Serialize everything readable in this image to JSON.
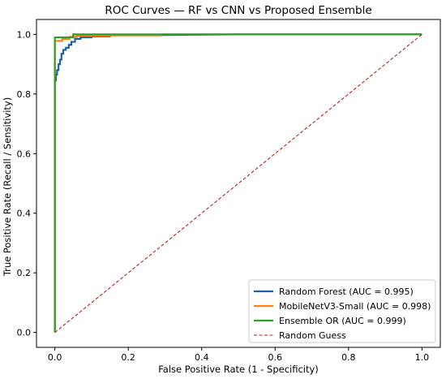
{
  "chart_data": {
    "type": "line",
    "title": "ROC Curves — RF vs CNN vs Proposed Ensemble",
    "xlabel": "False Positive Rate (1 - Specificity)",
    "ylabel": "True Positive Rate (Recall / Sensitivity)",
    "xlim": [
      -0.05,
      1.05
    ],
    "ylim": [
      -0.05,
      1.05
    ],
    "xticks": [
      "0.0",
      "0.2",
      "0.4",
      "0.6",
      "0.8",
      "1.0"
    ],
    "yticks": [
      "0.0",
      "0.2",
      "0.4",
      "0.6",
      "0.8",
      "1.0"
    ],
    "grid": false,
    "legend_position": "bottom-right",
    "series": [
      {
        "name": "Random Forest (AUC = 0.995)",
        "color": "#1f5fa8",
        "style": "solid",
        "points": [
          [
            0,
            0
          ],
          [
            0,
            0.845
          ],
          [
            0.003,
            0.845
          ],
          [
            0.003,
            0.865
          ],
          [
            0.006,
            0.865
          ],
          [
            0.006,
            0.88
          ],
          [
            0.01,
            0.88
          ],
          [
            0.01,
            0.9
          ],
          [
            0.014,
            0.9
          ],
          [
            0.014,
            0.915
          ],
          [
            0.018,
            0.915
          ],
          [
            0.018,
            0.935
          ],
          [
            0.023,
            0.935
          ],
          [
            0.023,
            0.948
          ],
          [
            0.03,
            0.948
          ],
          [
            0.03,
            0.955
          ],
          [
            0.038,
            0.955
          ],
          [
            0.038,
            0.965
          ],
          [
            0.045,
            0.965
          ],
          [
            0.045,
            0.975
          ],
          [
            0.055,
            0.975
          ],
          [
            0.055,
            0.985
          ],
          [
            0.07,
            0.985
          ],
          [
            0.07,
            0.99
          ],
          [
            0.1,
            0.99
          ],
          [
            0.1,
            0.993
          ],
          [
            0.15,
            0.993
          ],
          [
            0.15,
            0.997
          ],
          [
            0.29,
            0.997
          ],
          [
            0.29,
            0.998
          ],
          [
            0.5,
            1.0
          ],
          [
            1.0,
            1.0
          ]
        ]
      },
      {
        "name": "MobileNetV3-Small (AUC = 0.998)",
        "color": "#ff7f0e",
        "style": "solid",
        "points": [
          [
            0,
            0
          ],
          [
            0,
            0.978
          ],
          [
            0.02,
            0.978
          ],
          [
            0.02,
            0.985
          ],
          [
            0.04,
            0.985
          ],
          [
            0.04,
            0.992
          ],
          [
            0.06,
            0.992
          ],
          [
            0.06,
            0.995
          ],
          [
            0.15,
            0.995
          ],
          [
            0.15,
            0.997
          ],
          [
            0.29,
            0.997
          ],
          [
            0.29,
            1.0
          ],
          [
            1.0,
            1.0
          ]
        ]
      },
      {
        "name": "Ensemble OR (AUC = 0.999)",
        "color": "#2ca02c",
        "style": "solid",
        "points": [
          [
            0,
            0
          ],
          [
            0,
            0.99
          ],
          [
            0.05,
            0.99
          ],
          [
            0.05,
            1.0
          ],
          [
            1.0,
            1.0
          ]
        ]
      },
      {
        "name": "Random Guess",
        "color": "#b22222",
        "style": "dashed",
        "points": [
          [
            0,
            0
          ],
          [
            1,
            1
          ]
        ]
      }
    ]
  }
}
